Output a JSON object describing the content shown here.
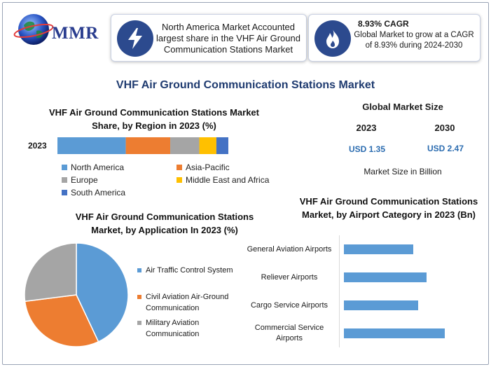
{
  "brand": {
    "logo_text": "MMR"
  },
  "header": {
    "card1_text": "North America Market Accounted largest share in the VHF Air Ground Communication Stations Market",
    "card2_title": "8.93% CAGR",
    "card2_text": "Global Market to grow at a CAGR of 8.93% during 2024-2030"
  },
  "main_title": "VHF Air Ground Communication Stations Market",
  "market_size": {
    "title": "Global Market Size",
    "year1": "2023",
    "year2": "2030",
    "value1": "USD 1.35",
    "value2": "USD 2.47",
    "note": "Market Size in Billion"
  },
  "chart_data": [
    {
      "type": "bar",
      "orientation": "horizontal-stacked",
      "title": "VHF Air Ground Communication Stations Market Share, by Region in 2023 (%)",
      "categories": [
        "2023"
      ],
      "series": [
        {
          "name": "North America",
          "values": [
            40
          ],
          "color": "#5b9bd5"
        },
        {
          "name": "Asia-Pacific",
          "values": [
            26
          ],
          "color": "#ed7d31"
        },
        {
          "name": "Europe",
          "values": [
            17
          ],
          "color": "#a5a5a5"
        },
        {
          "name": "Middle East and Africa",
          "values": [
            10
          ],
          "color": "#ffc000"
        },
        {
          "name": "South America",
          "values": [
            7
          ],
          "color": "#4472c4"
        }
      ],
      "legend": "bottom"
    },
    {
      "type": "pie",
      "title": "VHF Air Ground Communication Stations Market, by Application In 2023 (%)",
      "labels": [
        "Air Traffic Control System",
        "Civil Aviation Air-Ground Communication",
        "Military Aviation Communication"
      ],
      "values": [
        43,
        30,
        27
      ],
      "colors": [
        "#5b9bd5",
        "#ed7d31",
        "#a5a5a5"
      ],
      "legend": "right"
    },
    {
      "type": "bar",
      "orientation": "horizontal",
      "title": "VHF Air Ground Communication Stations Market, by Airport Category in 2023 (Bn)",
      "categories": [
        "General Aviation Airports",
        "Reliever Airports",
        "Cargo Service Airports",
        "Commercial Service Airports"
      ],
      "values": [
        0.26,
        0.31,
        0.28,
        0.38
      ],
      "color": "#5b9bd5",
      "xlim": [
        0,
        0.5
      ]
    }
  ]
}
